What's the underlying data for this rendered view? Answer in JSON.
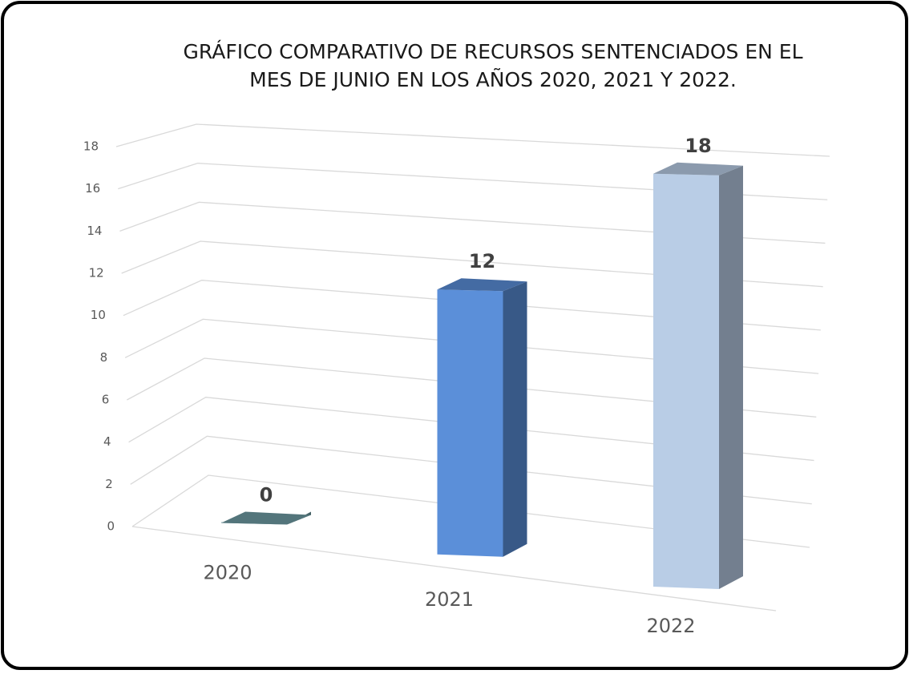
{
  "chart_data": {
    "type": "bar3d",
    "title": [
      "GRÁFICO COMPARATIVO DE RECURSOS SENTENCIADOS EN EL",
      "MES DE JUNIO EN LOS AÑOS 2020, 2021 Y 2022."
    ],
    "categories": [
      "2020",
      "2021",
      "2022"
    ],
    "values": [
      0,
      12,
      18
    ],
    "colors": [
      "#6f9ca4",
      "#5b8fd9",
      "#b9cde6"
    ],
    "ylim": [
      0,
      18
    ],
    "yticks": [
      0,
      2,
      4,
      6,
      8,
      10,
      12,
      14,
      16,
      18
    ],
    "grid": true
  }
}
